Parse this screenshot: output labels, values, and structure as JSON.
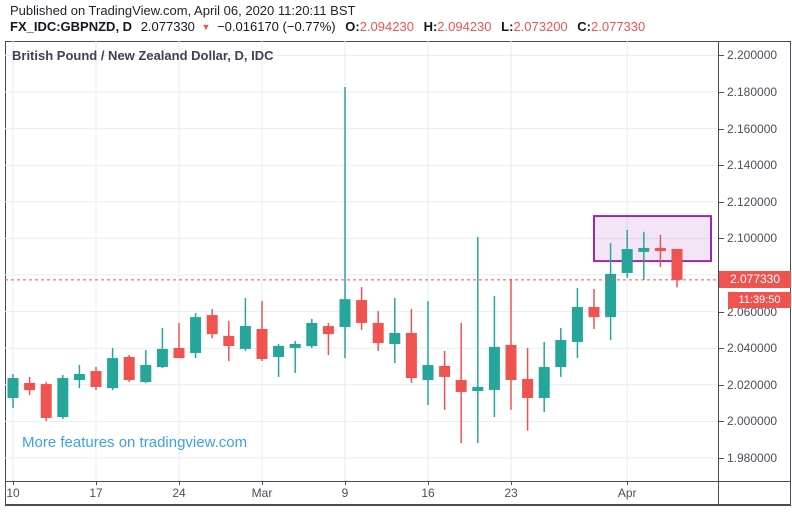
{
  "header": {
    "published": "Published on TradingView.com, April 06, 2020 11:20:11 BST",
    "symbol": "FX_IDC:GBPNZD, D",
    "last_price": "2.077330",
    "change_arrow": "▼",
    "change": "−0.016170 (−0.77%)",
    "open_label": "O:",
    "open_value": "2.094230",
    "high_label": "H:",
    "high_value": "2.094230",
    "low_label": "L:",
    "low_value": "2.073200",
    "close_label": "C:",
    "close_value": "2.077330"
  },
  "chart": {
    "title": "British Pound / New Zealand Dollar, D, IDC",
    "watermark": "More features on tradingview.com",
    "price_label": "2.077330",
    "countdown": "11:39:50"
  },
  "colors": {
    "up": "#26a69a",
    "down": "#ef5350",
    "price_line": "#ef5350",
    "price_label_bg": "#ef5350",
    "box_border": "#9c27b0",
    "box_fill": "rgba(156,39,176,0.12)",
    "grid": "#e6edf4",
    "axis_text": "#4c4f5c",
    "link": "#3ba1ef"
  },
  "chart_data": {
    "type": "candlestick",
    "symbol": "FX_IDC:GBPNZD",
    "timeframe": "D",
    "title": "British Pound / New Zealand Dollar, D, IDC",
    "current_price": 2.07733,
    "y_ticks": [
      2.2,
      2.18,
      2.16,
      2.14,
      2.12,
      2.1,
      2.08,
      2.06,
      2.04,
      2.02,
      2.0,
      1.98
    ],
    "y_range": [
      1.966,
      2.208
    ],
    "x_labels": [
      {
        "label": "10",
        "index": 0
      },
      {
        "label": "17",
        "index": 5
      },
      {
        "label": "24",
        "index": 10
      },
      {
        "label": "Mar",
        "index": 15
      },
      {
        "label": "9",
        "index": 20
      },
      {
        "label": "16",
        "index": 25
      },
      {
        "label": "23",
        "index": 30
      },
      {
        "label": "Apr",
        "index": 37
      }
    ],
    "highlight_box": {
      "price_top": 2.1122,
      "price_bottom": 2.0876,
      "from_index": 35,
      "to_right_edge": true
    },
    "candles_format": [
      "open",
      "high",
      "low",
      "close"
    ],
    "candles": [
      [
        2.0128,
        2.0259,
        2.0073,
        2.0237
      ],
      [
        2.021,
        2.0243,
        2.0144,
        2.0171
      ],
      [
        2.0204,
        2.0215,
        2.0002,
        2.0019
      ],
      [
        2.0024,
        2.0254,
        2.0013,
        2.0237
      ],
      [
        2.0226,
        2.0308,
        2.0182,
        2.0259
      ],
      [
        2.0275,
        2.0297,
        2.0171,
        2.0188
      ],
      [
        2.0182,
        2.0401,
        2.0171,
        2.0346
      ],
      [
        2.0352,
        2.0363,
        2.0215,
        2.0226
      ],
      [
        2.0215,
        2.039,
        2.021,
        2.0308
      ],
      [
        2.0297,
        2.051,
        2.0292,
        2.0396
      ],
      [
        2.0401,
        2.0538,
        2.0346,
        2.0346
      ],
      [
        2.0374,
        2.0592,
        2.0346,
        2.057
      ],
      [
        2.0581,
        2.0614,
        2.0455,
        2.0477
      ],
      [
        2.0467,
        2.0549,
        2.033,
        2.0412
      ],
      [
        2.0396,
        2.0674,
        2.0385,
        2.0521
      ],
      [
        2.0505,
        2.0658,
        2.033,
        2.0341
      ],
      [
        2.0352,
        2.0423,
        2.0243,
        2.0412
      ],
      [
        2.0401,
        2.0439,
        2.0264,
        2.0423
      ],
      [
        2.0412,
        2.056,
        2.0401,
        2.0538
      ],
      [
        2.0521,
        2.0538,
        2.0363,
        2.0477
      ],
      [
        2.0516,
        2.1827,
        2.0346,
        2.0668
      ],
      [
        2.0663,
        2.0734,
        2.05,
        2.0538
      ],
      [
        2.0538,
        2.0603,
        2.0385,
        2.0428
      ],
      [
        2.0423,
        2.0674,
        2.0319,
        2.0483
      ],
      [
        2.0483,
        2.0614,
        2.021,
        2.0237
      ],
      [
        2.0226,
        2.0657,
        2.009,
        2.0308
      ],
      [
        2.0303,
        2.0385,
        2.0063,
        2.0243
      ],
      [
        2.0226,
        2.0538,
        1.9882,
        2.0161
      ],
      [
        2.0166,
        2.1008,
        1.9882,
        2.0188
      ],
      [
        2.0172,
        2.0685,
        2.0024,
        2.0407
      ],
      [
        2.0418,
        2.0779,
        2.0063,
        2.0226
      ],
      [
        2.0232,
        2.0401,
        1.995,
        2.0128
      ],
      [
        2.0128,
        2.0434,
        2.0052,
        2.0297
      ],
      [
        2.0297,
        2.051,
        2.0243,
        2.0445
      ],
      [
        2.0434,
        2.0729,
        2.0346,
        2.0625
      ],
      [
        2.0625,
        2.0724,
        2.0505,
        2.057
      ],
      [
        2.057,
        2.0975,
        2.0445,
        2.0806
      ],
      [
        2.0811,
        2.1046,
        2.0784,
        2.0942
      ],
      [
        2.0926,
        2.1036,
        2.0773,
        2.0948
      ],
      [
        2.0948,
        2.1019,
        2.0844,
        2.0931
      ],
      [
        2.09423,
        2.09423,
        2.0732,
        2.07733
      ]
    ]
  }
}
